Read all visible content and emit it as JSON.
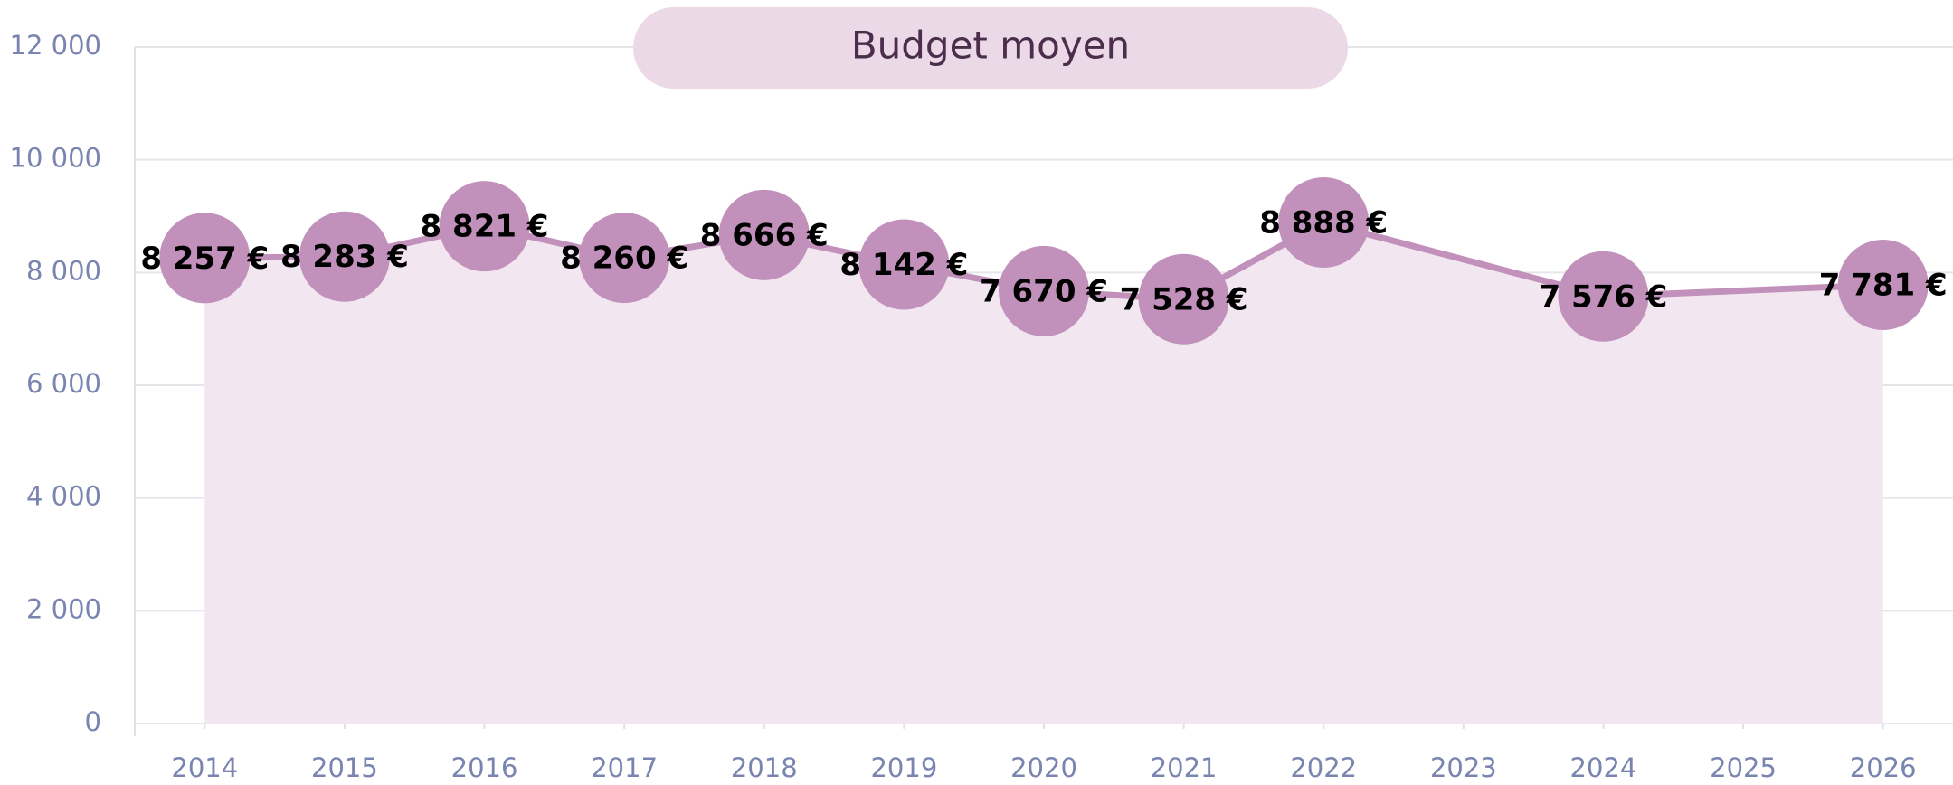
{
  "chart_data": {
    "type": "line",
    "title": "Budget moyen",
    "x": [
      2014,
      2015,
      2016,
      2017,
      2018,
      2019,
      2020,
      2021,
      2022,
      2024,
      2026
    ],
    "series": [
      {
        "name": "Budget moyen",
        "color": "#c191bb",
        "area_color": "#f2e7f0",
        "values": [
          8257,
          8283,
          8821,
          8260,
          8666,
          8142,
          7670,
          7528,
          8888,
          7576,
          7781
        ],
        "value_labels": [
          "8 257 €",
          "8 283 €",
          "8 821 €",
          "8 260 €",
          "8 666 €",
          "8 142 €",
          "7 670 €",
          "7 528 €",
          "8 888 €",
          "7 576 €",
          "7 781 €"
        ]
      }
    ],
    "xlim": [
      2013.5,
      2026.5
    ],
    "xticks": [
      2014,
      2015,
      2016,
      2017,
      2018,
      2019,
      2020,
      2021,
      2022,
      2023,
      2024,
      2025,
      2026
    ],
    "ylim": [
      0,
      12000
    ],
    "yticks": [
      0,
      {
        "value": 2000,
        "label": "2 000"
      },
      {
        "value": 4000,
        "label": "4 000"
      },
      {
        "value": 6000,
        "label": "6 000"
      },
      {
        "value": 8000,
        "label": "8 000"
      },
      {
        "value": 10000,
        "label": "10 000"
      },
      {
        "value": 12000,
        "label": "12 000"
      }
    ],
    "grid": true
  }
}
